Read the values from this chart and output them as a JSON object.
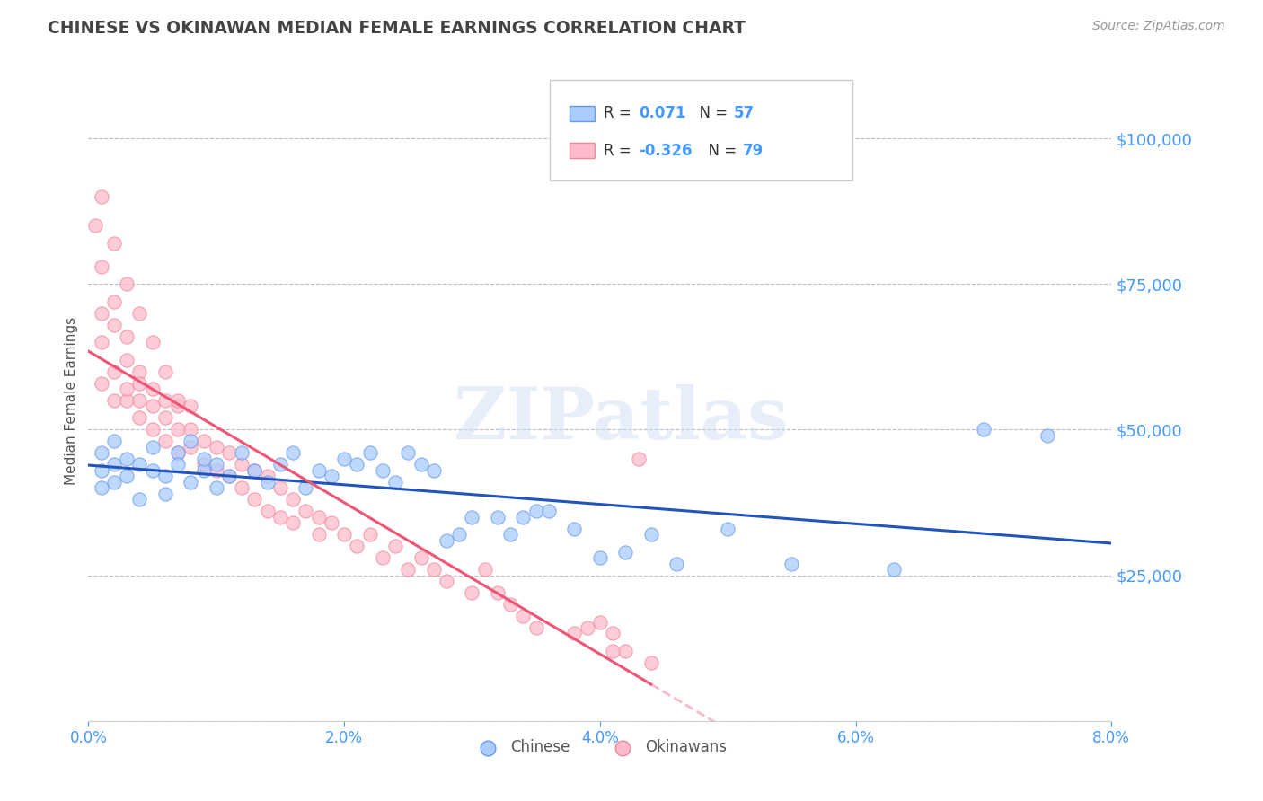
{
  "title": "CHINESE VS OKINAWAN MEDIAN FEMALE EARNINGS CORRELATION CHART",
  "source_text": "Source: ZipAtlas.com",
  "ylabel": "Median Female Earnings",
  "watermark": "ZIPatlas",
  "xlim": [
    0.0,
    0.08
  ],
  "ylim": [
    0,
    110000
  ],
  "xtick_labels": [
    "0.0%",
    "2.0%",
    "4.0%",
    "6.0%",
    "8.0%"
  ],
  "xtick_values": [
    0.0,
    0.02,
    0.04,
    0.06,
    0.08
  ],
  "ytick_values": [
    0,
    25000,
    50000,
    75000,
    100000
  ],
  "ytick_labels": [
    "",
    "$25,000",
    "$50,000",
    "$75,000",
    "$100,000"
  ],
  "background_color": "#ffffff",
  "grid_color": "#bbbbcc",
  "title_color": "#444444",
  "axis_color": "#4499ff",
  "chinese_color": "#aaccff",
  "okinawan_color": "#ffbbcc",
  "chinese_edge_color": "#6699ee",
  "okinawan_edge_color": "#ee8899",
  "chinese_line_color": "#2255bb",
  "okinawan_line_color": "#ee5577",
  "legend_R1": "0.071",
  "legend_N1": "57",
  "legend_R2": "-0.326",
  "legend_N2": "79",
  "legend_label1": "Chinese",
  "legend_label2": "Okinawans",
  "chinese_x": [
    0.001,
    0.001,
    0.001,
    0.002,
    0.002,
    0.002,
    0.003,
    0.003,
    0.004,
    0.004,
    0.005,
    0.005,
    0.006,
    0.006,
    0.007,
    0.007,
    0.008,
    0.008,
    0.009,
    0.009,
    0.01,
    0.01,
    0.011,
    0.012,
    0.013,
    0.014,
    0.015,
    0.016,
    0.017,
    0.018,
    0.019,
    0.02,
    0.021,
    0.022,
    0.023,
    0.024,
    0.025,
    0.026,
    0.027,
    0.028,
    0.029,
    0.03,
    0.032,
    0.033,
    0.034,
    0.035,
    0.036,
    0.038,
    0.04,
    0.042,
    0.044,
    0.046,
    0.05,
    0.055,
    0.063,
    0.07,
    0.075
  ],
  "chinese_y": [
    43000,
    40000,
    46000,
    44000,
    41000,
    48000,
    42000,
    45000,
    38000,
    44000,
    43000,
    47000,
    42000,
    39000,
    46000,
    44000,
    48000,
    41000,
    43000,
    45000,
    40000,
    44000,
    42000,
    46000,
    43000,
    41000,
    44000,
    46000,
    40000,
    43000,
    42000,
    45000,
    44000,
    46000,
    43000,
    41000,
    46000,
    44000,
    43000,
    31000,
    32000,
    35000,
    35000,
    32000,
    35000,
    36000,
    36000,
    33000,
    28000,
    29000,
    32000,
    27000,
    33000,
    27000,
    26000,
    50000,
    49000
  ],
  "okinawan_x": [
    0.0005,
    0.001,
    0.001,
    0.001,
    0.001,
    0.002,
    0.002,
    0.002,
    0.002,
    0.003,
    0.003,
    0.003,
    0.003,
    0.004,
    0.004,
    0.004,
    0.004,
    0.005,
    0.005,
    0.005,
    0.006,
    0.006,
    0.006,
    0.007,
    0.007,
    0.007,
    0.008,
    0.008,
    0.008,
    0.009,
    0.009,
    0.01,
    0.01,
    0.011,
    0.011,
    0.012,
    0.012,
    0.013,
    0.013,
    0.014,
    0.014,
    0.015,
    0.015,
    0.016,
    0.016,
    0.017,
    0.018,
    0.018,
    0.019,
    0.02,
    0.021,
    0.022,
    0.023,
    0.024,
    0.025,
    0.026,
    0.027,
    0.028,
    0.03,
    0.031,
    0.032,
    0.033,
    0.034,
    0.035,
    0.038,
    0.04,
    0.041,
    0.042,
    0.044,
    0.001,
    0.002,
    0.003,
    0.004,
    0.005,
    0.006,
    0.007,
    0.039,
    0.041,
    0.043
  ],
  "okinawan_y": [
    85000,
    58000,
    70000,
    78000,
    65000,
    60000,
    55000,
    68000,
    72000,
    55000,
    62000,
    57000,
    66000,
    52000,
    60000,
    55000,
    58000,
    54000,
    57000,
    50000,
    52000,
    55000,
    48000,
    50000,
    54000,
    46000,
    50000,
    47000,
    54000,
    48000,
    44000,
    47000,
    43000,
    46000,
    42000,
    44000,
    40000,
    43000,
    38000,
    42000,
    36000,
    40000,
    35000,
    38000,
    34000,
    36000,
    35000,
    32000,
    34000,
    32000,
    30000,
    32000,
    28000,
    30000,
    26000,
    28000,
    26000,
    24000,
    22000,
    26000,
    22000,
    20000,
    18000,
    16000,
    15000,
    17000,
    15000,
    12000,
    10000,
    90000,
    82000,
    75000,
    70000,
    65000,
    60000,
    55000,
    16000,
    12000,
    45000
  ]
}
